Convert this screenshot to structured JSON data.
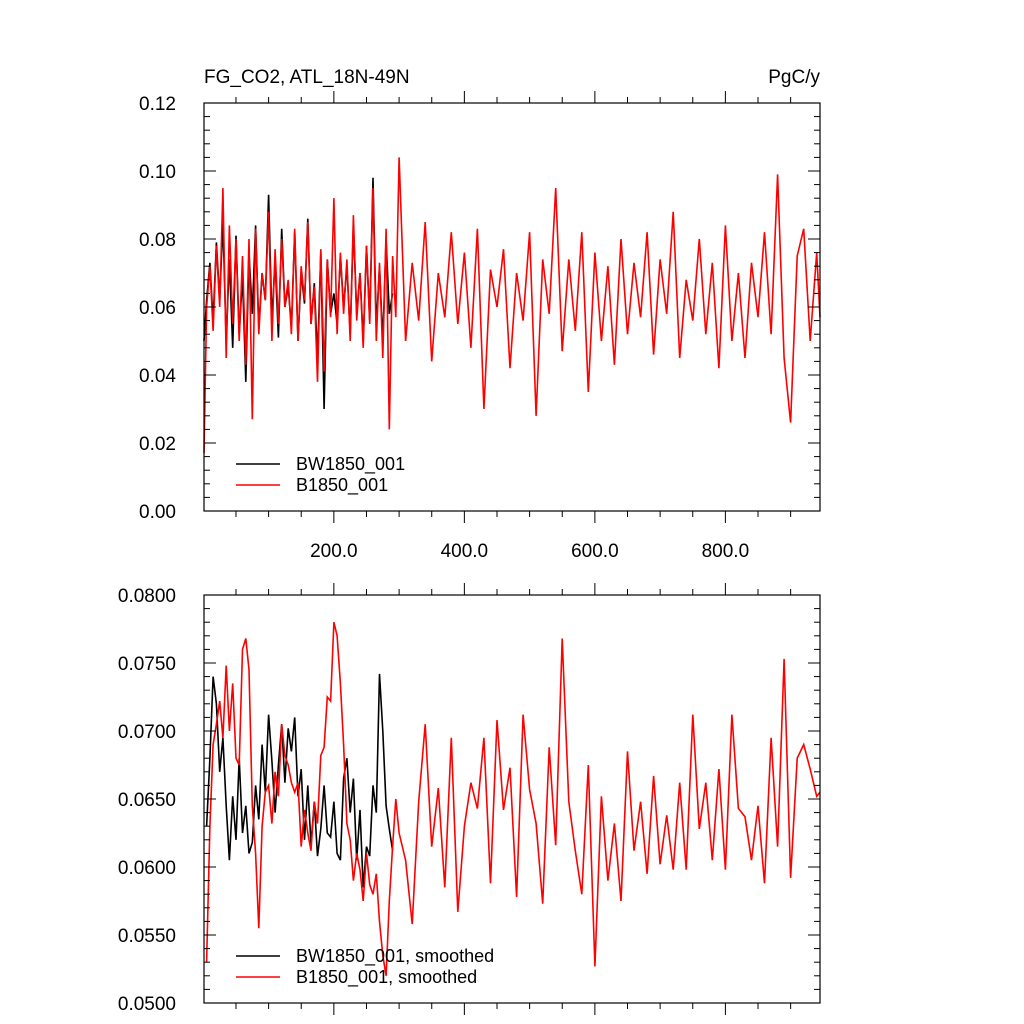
{
  "chart_data": [
    {
      "type": "line",
      "title": "FG_CO2, ATL_18N-49N",
      "units": "PgC/y",
      "xlabel": "",
      "ylabel": "",
      "xlim": [
        1,
        945
      ],
      "ylim": [
        0.0,
        0.12
      ],
      "x_ticks": [
        200,
        400,
        600,
        800
      ],
      "x_tick_labels": [
        "200.0",
        "400.0",
        "600.0",
        "800.0"
      ],
      "y_ticks": [
        0.0,
        0.02,
        0.04,
        0.06,
        0.08,
        0.1,
        0.12
      ],
      "y_tick_labels": [
        "0.00",
        "0.02",
        "0.04",
        "0.06",
        "0.08",
        "0.10",
        "0.12"
      ],
      "grid": false,
      "legend": "bottom-left",
      "series": [
        {
          "name": "BW1850_001",
          "color": "#000000",
          "x": [
            1,
            5,
            10,
            15,
            20,
            25,
            30,
            35,
            40,
            45,
            50,
            55,
            60,
            65,
            70,
            75,
            80,
            85,
            90,
            95,
            100,
            105,
            110,
            115,
            120,
            125,
            130,
            135,
            140,
            145,
            150,
            155,
            160,
            165,
            170,
            175,
            180,
            185,
            190,
            195,
            200,
            205,
            210,
            215,
            220,
            225,
            230,
            235,
            240,
            245,
            250,
            255,
            260,
            265,
            270,
            275,
            280,
            285,
            290
          ],
          "y": [
            0.05,
            0.062,
            0.073,
            0.056,
            0.079,
            0.062,
            0.085,
            0.05,
            0.074,
            0.048,
            0.081,
            0.052,
            0.069,
            0.038,
            0.076,
            0.058,
            0.084,
            0.054,
            0.07,
            0.062,
            0.093,
            0.056,
            0.074,
            0.051,
            0.083,
            0.06,
            0.066,
            0.054,
            0.082,
            0.05,
            0.07,
            0.061,
            0.086,
            0.055,
            0.067,
            0.045,
            0.076,
            0.03,
            0.074,
            0.058,
            0.064,
            0.055,
            0.075,
            0.06,
            0.072,
            0.052,
            0.084,
            0.058,
            0.07,
            0.05,
            0.078,
            0.056,
            0.098,
            0.054,
            0.072,
            0.05,
            0.08,
            0.058,
            0.064
          ]
        },
        {
          "name": "B1850_001",
          "color": "#ff0000",
          "x": [
            1,
            5,
            10,
            15,
            20,
            25,
            30,
            35,
            40,
            45,
            50,
            55,
            60,
            65,
            70,
            75,
            80,
            85,
            90,
            95,
            100,
            105,
            110,
            115,
            120,
            125,
            130,
            135,
            140,
            145,
            150,
            155,
            160,
            165,
            170,
            175,
            180,
            185,
            190,
            195,
            200,
            205,
            210,
            215,
            220,
            225,
            230,
            235,
            240,
            245,
            250,
            255,
            260,
            265,
            270,
            275,
            280,
            285,
            290,
            295,
            300,
            310,
            320,
            330,
            340,
            350,
            360,
            370,
            380,
            390,
            400,
            410,
            420,
            430,
            440,
            450,
            460,
            470,
            480,
            490,
            500,
            510,
            520,
            530,
            540,
            550,
            560,
            570,
            580,
            590,
            600,
            610,
            620,
            630,
            640,
            650,
            660,
            670,
            680,
            690,
            700,
            710,
            720,
            730,
            740,
            750,
            760,
            770,
            780,
            790,
            800,
            810,
            820,
            830,
            840,
            850,
            860,
            870,
            880,
            890,
            900,
            910,
            920,
            930,
            940,
            945
          ],
          "y": [
            0.017,
            0.06,
            0.072,
            0.053,
            0.078,
            0.06,
            0.095,
            0.045,
            0.084,
            0.055,
            0.08,
            0.05,
            0.075,
            0.043,
            0.08,
            0.027,
            0.083,
            0.052,
            0.07,
            0.062,
            0.088,
            0.05,
            0.077,
            0.055,
            0.08,
            0.06,
            0.068,
            0.052,
            0.083,
            0.05,
            0.072,
            0.062,
            0.085,
            0.055,
            0.066,
            0.038,
            0.077,
            0.041,
            0.074,
            0.057,
            0.092,
            0.052,
            0.076,
            0.058,
            0.074,
            0.05,
            0.087,
            0.056,
            0.07,
            0.048,
            0.078,
            0.055,
            0.095,
            0.05,
            0.073,
            0.045,
            0.083,
            0.024,
            0.075,
            0.057,
            0.104,
            0.05,
            0.073,
            0.056,
            0.085,
            0.044,
            0.07,
            0.057,
            0.082,
            0.055,
            0.076,
            0.048,
            0.083,
            0.03,
            0.071,
            0.06,
            0.077,
            0.042,
            0.07,
            0.056,
            0.082,
            0.028,
            0.074,
            0.058,
            0.095,
            0.047,
            0.074,
            0.053,
            0.082,
            0.035,
            0.076,
            0.05,
            0.072,
            0.043,
            0.08,
            0.052,
            0.073,
            0.057,
            0.082,
            0.046,
            0.074,
            0.058,
            0.088,
            0.045,
            0.068,
            0.056,
            0.08,
            0.052,
            0.073,
            0.042,
            0.084,
            0.05,
            0.07,
            0.045,
            0.073,
            0.057,
            0.082,
            0.052,
            0.099,
            0.045,
            0.026,
            0.075,
            0.083,
            0.05,
            0.076,
            0.057
          ]
        }
      ]
    },
    {
      "type": "line",
      "title": "",
      "xlabel": "",
      "ylabel": "",
      "xlim": [
        1,
        945
      ],
      "ylim": [
        0.05,
        0.08
      ],
      "x_ticks": [
        200,
        400,
        600,
        800
      ],
      "y_ticks": [
        0.05,
        0.055,
        0.06,
        0.065,
        0.07,
        0.075,
        0.08
      ],
      "y_tick_labels": [
        "0.0500",
        "0.0550",
        "0.0600",
        "0.0650",
        "0.0700",
        "0.0750",
        "0.0800"
      ],
      "grid": false,
      "legend": "bottom-left",
      "series": [
        {
          "name": "BW1850_001, smoothed",
          "color": "#000000",
          "x": [
            5,
            10,
            15,
            20,
            25,
            30,
            35,
            40,
            45,
            50,
            55,
            60,
            65,
            70,
            75,
            80,
            85,
            90,
            95,
            100,
            105,
            110,
            115,
            120,
            125,
            130,
            135,
            140,
            145,
            150,
            155,
            160,
            165,
            170,
            175,
            180,
            185,
            190,
            195,
            200,
            205,
            210,
            215,
            220,
            225,
            230,
            235,
            240,
            245,
            250,
            255,
            260,
            265,
            270,
            275,
            280,
            285,
            290
          ],
          "y": [
            0.063,
            0.068,
            0.074,
            0.072,
            0.067,
            0.0695,
            0.0645,
            0.0605,
            0.0652,
            0.062,
            0.068,
            0.0625,
            0.0645,
            0.061,
            0.0618,
            0.066,
            0.0635,
            0.069,
            0.0655,
            0.0712,
            0.0678,
            0.064,
            0.0675,
            0.0705,
            0.0662,
            0.0702,
            0.0685,
            0.071,
            0.0652,
            0.0672,
            0.062,
            0.066,
            0.0617,
            0.0648,
            0.0608,
            0.0628,
            0.066,
            0.0625,
            0.0622,
            0.0648,
            0.061,
            0.0605,
            0.0665,
            0.068,
            0.064,
            0.0665,
            0.0605,
            0.0642,
            0.0585,
            0.0615,
            0.0608,
            0.066,
            0.064,
            0.0742,
            0.07,
            0.0645,
            0.0628,
            0.0612
          ]
        },
        {
          "name": "B1850_001, smoothed",
          "color": "#ff0000",
          "x": [
            5,
            10,
            15,
            20,
            25,
            30,
            35,
            40,
            45,
            50,
            55,
            60,
            65,
            70,
            75,
            80,
            85,
            90,
            95,
            100,
            105,
            110,
            115,
            120,
            125,
            130,
            135,
            140,
            145,
            150,
            155,
            160,
            165,
            170,
            175,
            180,
            185,
            190,
            195,
            200,
            205,
            210,
            215,
            220,
            225,
            230,
            235,
            240,
            245,
            250,
            255,
            260,
            265,
            270,
            275,
            280,
            285,
            290,
            295,
            300,
            310,
            320,
            330,
            340,
            350,
            360,
            370,
            380,
            390,
            400,
            410,
            420,
            430,
            440,
            450,
            460,
            470,
            480,
            490,
            500,
            510,
            520,
            530,
            540,
            550,
            560,
            570,
            580,
            590,
            600,
            610,
            620,
            630,
            640,
            650,
            660,
            670,
            680,
            690,
            700,
            710,
            720,
            730,
            740,
            750,
            760,
            770,
            780,
            790,
            800,
            810,
            820,
            830,
            840,
            850,
            860,
            870,
            880,
            890,
            900,
            910,
            920,
            930,
            940,
            945
          ],
          "y": [
            0.053,
            0.063,
            0.069,
            0.0705,
            0.0722,
            0.0695,
            0.0748,
            0.07,
            0.0735,
            0.068,
            0.0675,
            0.076,
            0.0768,
            0.0745,
            0.0645,
            0.061,
            0.0555,
            0.063,
            0.0655,
            0.066,
            0.0632,
            0.067,
            0.0652,
            0.0705,
            0.0682,
            0.0675,
            0.0662,
            0.0655,
            0.0662,
            0.0615,
            0.0642,
            0.0625,
            0.0612,
            0.0648,
            0.0632,
            0.0682,
            0.0688,
            0.0725,
            0.0722,
            0.078,
            0.077,
            0.0735,
            0.069,
            0.0632,
            0.062,
            0.059,
            0.061,
            0.0598,
            0.0575,
            0.061,
            0.0587,
            0.058,
            0.0595,
            0.056,
            0.0535,
            0.052,
            0.0575,
            0.0615,
            0.065,
            0.0625,
            0.0605,
            0.0558,
            0.0648,
            0.0705,
            0.0615,
            0.0658,
            0.0585,
            0.0695,
            0.0567,
            0.063,
            0.0662,
            0.0643,
            0.0695,
            0.0588,
            0.0708,
            0.0642,
            0.0673,
            0.0578,
            0.0712,
            0.0657,
            0.0632,
            0.0573,
            0.0688,
            0.0616,
            0.0768,
            0.0648,
            0.0612,
            0.058,
            0.0675,
            0.0527,
            0.0652,
            0.059,
            0.0632,
            0.0575,
            0.0685,
            0.0612,
            0.0648,
            0.0595,
            0.0667,
            0.0602,
            0.0638,
            0.0598,
            0.0662,
            0.0598,
            0.0712,
            0.0628,
            0.0662,
            0.0605,
            0.0672,
            0.0598,
            0.0712,
            0.0643,
            0.0637,
            0.0605,
            0.0645,
            0.0588,
            0.0695,
            0.0615,
            0.0753,
            0.0592,
            0.068,
            0.069,
            0.0672,
            0.0652,
            0.0655
          ]
        }
      ]
    }
  ]
}
